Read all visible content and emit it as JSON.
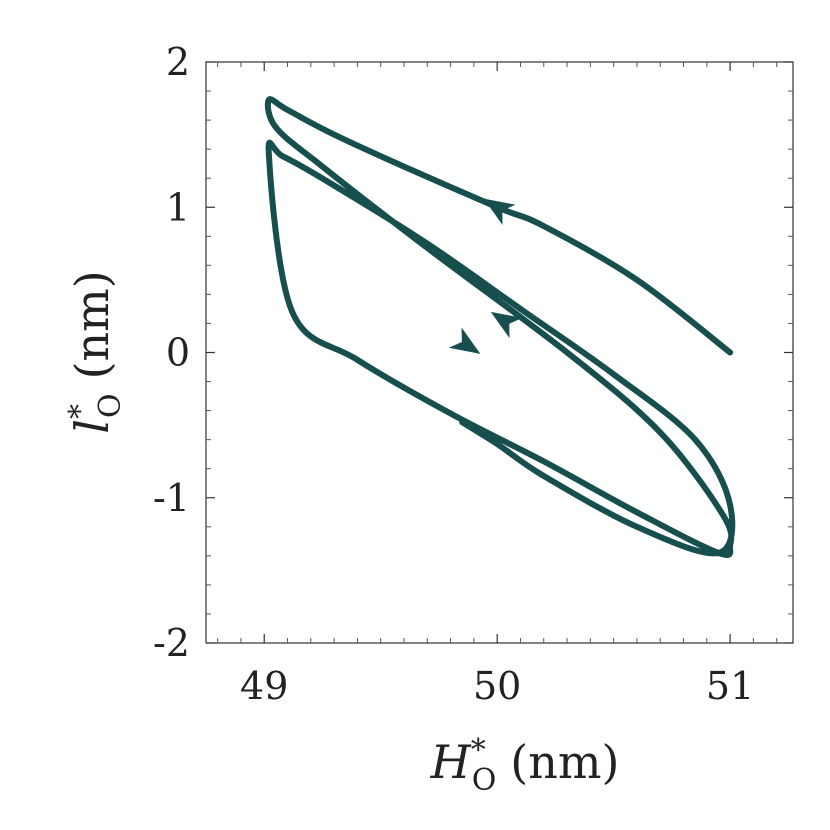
{
  "chart_data": {
    "type": "line",
    "xlabel": {
      "symbol": "H",
      "superscript": "*",
      "subscript": "O",
      "unit": "(nm)"
    },
    "ylabel": {
      "symbol": "l",
      "superscript": "*",
      "subscript": "O",
      "unit": "(nm)"
    },
    "xlim": [
      48.75,
      51.27
    ],
    "ylim": [
      -2,
      2
    ],
    "xticks": [
      49,
      50,
      51
    ],
    "xtick_labels": [
      "49",
      "50",
      "51"
    ],
    "yticks": [
      2,
      1,
      0,
      -1,
      -2
    ],
    "ytick_labels": [
      "2",
      "1",
      "0",
      "-1",
      "-2"
    ],
    "grid": false,
    "line_color": "#174f4f",
    "series": [
      {
        "x": [
          51.0,
          50.6,
          50.2,
          50.0,
          49.6,
          49.3,
          49.1,
          49.02,
          49.05,
          49.25,
          49.7,
          50.3,
          50.7,
          50.97,
          51.0,
          50.95,
          50.6,
          50.2,
          49.8,
          49.4,
          49.12,
          49.02,
          49.08,
          49.3,
          49.7,
          50.1,
          50.5,
          50.85,
          51.0,
          50.95,
          50.6,
          50.2,
          50.0,
          49.85
        ],
        "y": [
          0.0,
          0.5,
          0.87,
          1.0,
          1.28,
          1.5,
          1.67,
          1.74,
          1.55,
          1.28,
          0.72,
          0.0,
          -0.55,
          -1.12,
          -1.33,
          -1.38,
          -1.1,
          -0.75,
          -0.42,
          -0.05,
          0.28,
          1.36,
          1.35,
          1.15,
          0.75,
          0.3,
          -0.15,
          -0.6,
          -1.05,
          -1.38,
          -1.2,
          -0.85,
          -0.63,
          -0.48
        ]
      }
    ],
    "arrows": [
      {
        "x": 50.0,
        "y": 1.0,
        "direction": "up-left"
      },
      {
        "x": 50.03,
        "y": 0.22,
        "direction": "up-left"
      },
      {
        "x": 49.87,
        "y": 0.05,
        "direction": "down-right"
      }
    ]
  }
}
